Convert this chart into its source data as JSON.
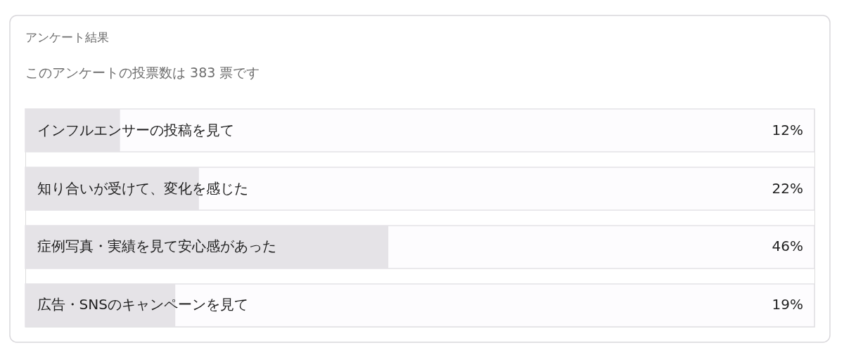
{
  "chart_data": {
    "type": "bar",
    "orientation": "horizontal",
    "title": "アンケート結果",
    "subtitle": "このアンケートの投票数は 383 票です",
    "categories": [
      "インフルエンサーの投稿を見て",
      "知り合いが受けて、変化を感じた",
      "症例写真・実績を見て安心感があった",
      "広告・SNSのキャンペーンを見て"
    ],
    "values": [
      12,
      22,
      46,
      19
    ],
    "value_labels": [
      "12%",
      "22%",
      "46%",
      "19%"
    ],
    "color": "#e5e3e7",
    "xlim": [
      0,
      100
    ],
    "tick_labels": "y"
  }
}
